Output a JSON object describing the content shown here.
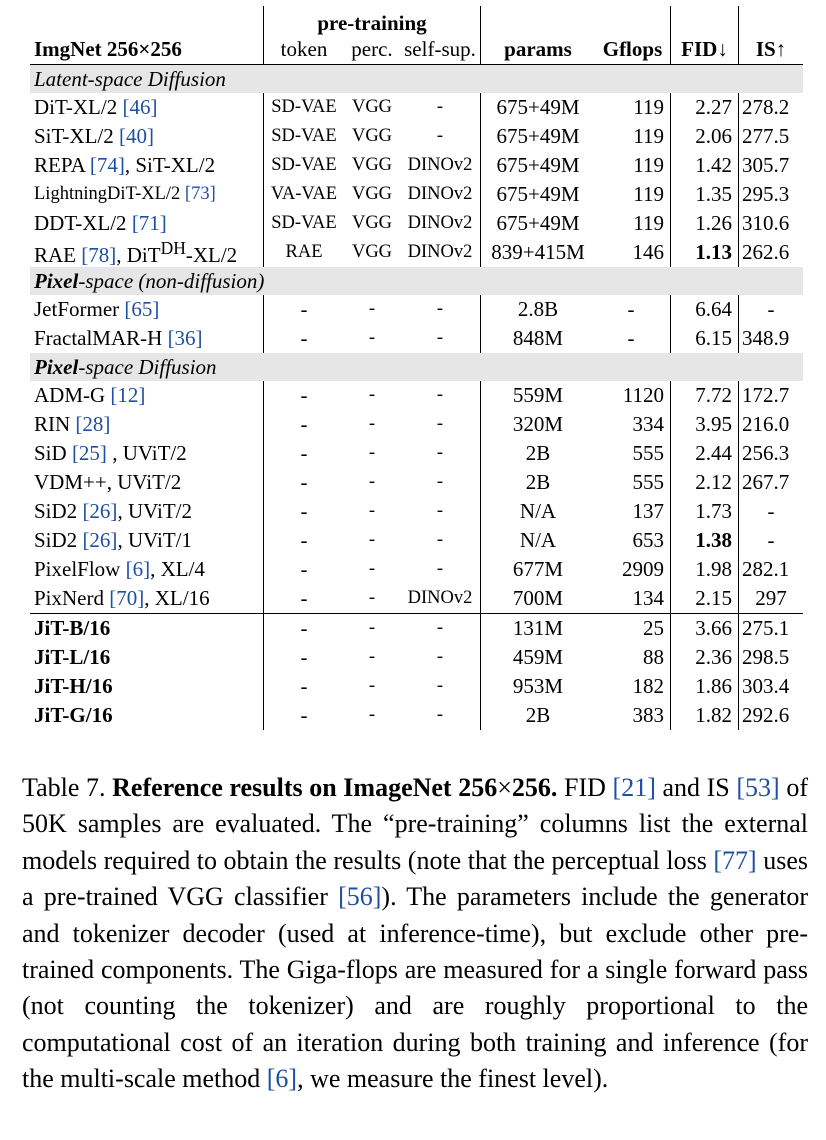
{
  "table": {
    "header": {
      "group_label": "pre-training",
      "dataset": "ImgNet 256×256",
      "col_token": "token",
      "col_perc": "perc.",
      "col_selfsup": "self-sup.",
      "col_params": "params",
      "col_gflops": "Gflops",
      "col_fid": "FID↓",
      "col_is": "IS↑"
    },
    "sections": {
      "latent": "Latent-space Diffusion",
      "pixel_nondiff_a": "Pixel",
      "pixel_nondiff_b": "-space (non-diffusion)",
      "pixel_diff_a": "Pixel",
      "pixel_diff_b": "-space Diffusion"
    },
    "latent_rows": [
      {
        "name": "DiT-XL/2 ",
        "cite": "[46]",
        "name_tail": "",
        "token": "SD-VAE",
        "perc": "VGG",
        "ss": "-",
        "params": "675+49M",
        "gflops": "119",
        "fid": "2.27",
        "is": "278.2"
      },
      {
        "name": "SiT-XL/2 ",
        "cite": "[40]",
        "name_tail": "",
        "token": "SD-VAE",
        "perc": "VGG",
        "ss": "-",
        "params": "675+49M",
        "gflops": "119",
        "fid": "2.06",
        "is": "277.5"
      },
      {
        "name": "REPA ",
        "cite": "[74]",
        "name_tail": ", SiT-XL/2",
        "token": "SD-VAE",
        "perc": "VGG",
        "ss": "DINOv2",
        "params": "675+49M",
        "gflops": "119",
        "fid": "1.42",
        "is": "305.7"
      },
      {
        "name": "LightningDiT-XL/2 ",
        "cite": "[73]",
        "name_tail": "",
        "token": "VA-VAE",
        "perc": "VGG",
        "ss": "DINOv2",
        "params": "675+49M",
        "gflops": "119",
        "fid": "1.35",
        "is": "295.3"
      },
      {
        "name": "DDT-XL/2 ",
        "cite": "[71]",
        "name_tail": "",
        "token": "SD-VAE",
        "perc": "VGG",
        "ss": "DINOv2",
        "params": "675+49M",
        "gflops": "119",
        "fid": "1.26",
        "is": "310.6"
      }
    ],
    "rae_row": {
      "name": "RAE ",
      "cite": "[78]",
      "mid": ", DiT",
      "sup": "DH",
      "tail": "-XL/2",
      "token": "RAE",
      "perc": "VGG",
      "ss": "DINOv2",
      "params": "839+415M",
      "gflops": "146",
      "fid": "1.13",
      "is": "262.6"
    },
    "nondiff_rows": [
      {
        "name": "JetFormer ",
        "cite": "[65]",
        "name_tail": "",
        "token": "-",
        "perc": "-",
        "ss": "-",
        "params": "2.8B",
        "gflops": "-",
        "fid": "6.64",
        "is": "-"
      },
      {
        "name": "FractalMAR-H ",
        "cite": "[36]",
        "name_tail": "",
        "token": "-",
        "perc": "-",
        "ss": "-",
        "params": "848M",
        "gflops": "-",
        "fid": "6.15",
        "is": "348.9"
      }
    ],
    "pixel_rows": [
      {
        "name": "ADM-G ",
        "cite": "[12]",
        "name_tail": "",
        "token": "-",
        "perc": "-",
        "ss": "-",
        "params": "559M",
        "gflops": "1120",
        "fid": "7.72",
        "is": "172.7"
      },
      {
        "name": "RIN ",
        "cite": "[28]",
        "name_tail": "",
        "token": "-",
        "perc": "-",
        "ss": "-",
        "params": "320M",
        "gflops": "334",
        "fid": "3.95",
        "is": "216.0"
      },
      {
        "name": "SiD ",
        "cite": "[25]",
        "name_tail": " , UViT/2",
        "token": "-",
        "perc": "-",
        "ss": "-",
        "params": "2B",
        "gflops": "555",
        "fid": "2.44",
        "is": "256.3"
      },
      {
        "name": "VDM++, UViT/2",
        "cite": "",
        "name_tail": "",
        "token": "-",
        "perc": "-",
        "ss": "-",
        "params": "2B",
        "gflops": "555",
        "fid": "2.12",
        "is": "267.7"
      },
      {
        "name": "SiD2 ",
        "cite": "[26]",
        "name_tail": ", UViT/2",
        "token": "-",
        "perc": "-",
        "ss": "-",
        "params": "N/A",
        "gflops": "137",
        "fid": "1.73",
        "is": "-"
      },
      {
        "name": "SiD2 ",
        "cite": "[26]",
        "name_tail": ", UViT/1",
        "token": "-",
        "perc": "-",
        "ss": "-",
        "params": "N/A",
        "gflops": "653",
        "fid": "1.38",
        "is": "-"
      },
      {
        "name": "PixelFlow ",
        "cite": "[6]",
        "name_tail": ", XL/4",
        "token": "-",
        "perc": "-",
        "ss": "-",
        "params": "677M",
        "gflops": "2909",
        "fid": "1.98",
        "is": "282.1"
      },
      {
        "name": "PixNerd ",
        "cite": "[70]",
        "name_tail": ", XL/16",
        "token": "-",
        "perc": "-",
        "ss": "DINOv2",
        "params": "700M",
        "gflops": "134",
        "fid": "2.15",
        "is": "297"
      }
    ],
    "jit_rows": [
      {
        "name": "JiT-B/16",
        "token": "-",
        "perc": "-",
        "ss": "-",
        "params": "131M",
        "gflops": "25",
        "fid": "3.66",
        "is": "275.1"
      },
      {
        "name": "JiT-L/16",
        "token": "-",
        "perc": "-",
        "ss": "-",
        "params": "459M",
        "gflops": "88",
        "fid": "2.36",
        "is": "298.5"
      },
      {
        "name": "JiT-H/16",
        "token": "-",
        "perc": "-",
        "ss": "-",
        "params": "953M",
        "gflops": "182",
        "fid": "1.86",
        "is": "303.4"
      },
      {
        "name": "JiT-G/16",
        "token": "-",
        "perc": "-",
        "ss": "-",
        "params": "2B",
        "gflops": "383",
        "fid": "1.82",
        "is": "292.6"
      }
    ]
  },
  "caption": {
    "label": "Table 7. ",
    "title_a": "Reference results on ImageNet 256",
    "title_x": "×",
    "title_b": "256.",
    "t1": " FID ",
    "c1": "[21]",
    "t2": " and IS ",
    "c2": "[53]",
    "t3": " of 50K samples are evaluated. The “pre-training” columns list the external models required to obtain the results (note that the perceptual loss ",
    "c3": "[77]",
    "t4": " uses a pre-trained VGG classifier ",
    "c4": "[56]",
    "t5": "). The parameters include the generator and tokenizer decoder (used at inference-time), but exclude other pre-trained components. The Giga-flops are measured for a single forward pass (not counting the tokenizer) and are roughly proportional to the computational cost of an iteration during both training and inference (for the multi-scale method ",
    "c5": "[6]",
    "t6": ", we measure the finest level)."
  }
}
